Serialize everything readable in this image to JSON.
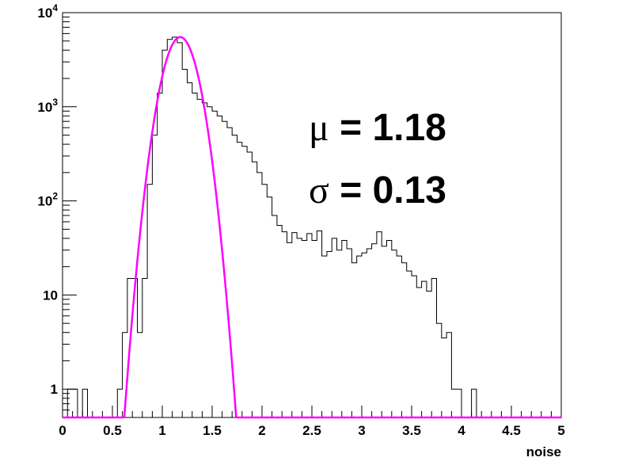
{
  "chart_data": {
    "type": "histogram",
    "xlabel": "noise",
    "ylabel": "",
    "xlim": [
      0,
      5
    ],
    "ylim": [
      0.5,
      10000
    ],
    "yscale": "log",
    "x_ticks": [
      "0",
      "0.5",
      "1",
      "1.5",
      "2",
      "2.5",
      "3",
      "3.5",
      "4",
      "4.5",
      "5"
    ],
    "y_ticks": [
      {
        "value": 1,
        "label": "1"
      },
      {
        "value": 10,
        "label": "10"
      },
      {
        "value": 100,
        "base": "10",
        "exp": "2"
      },
      {
        "value": 1000,
        "base": "10",
        "exp": "3"
      },
      {
        "value": 10000,
        "base": "10",
        "exp": "4"
      }
    ],
    "histogram": {
      "bin_width": 0.05,
      "x_start": 0,
      "counts": [
        0,
        1,
        1,
        0,
        1,
        0,
        0,
        0,
        0,
        0,
        0,
        1,
        4,
        15,
        15,
        4,
        15,
        150,
        500,
        1400,
        4000,
        5200,
        5500,
        4800,
        2500,
        1800,
        1400,
        1200,
        1100,
        1000,
        900,
        800,
        700,
        600,
        500,
        420,
        380,
        330,
        260,
        200,
        150,
        110,
        70,
        55,
        47,
        36,
        46,
        40,
        38,
        45,
        38,
        48,
        26,
        29,
        40,
        30,
        38,
        31,
        22,
        26,
        28,
        31,
        35,
        47,
        33,
        38,
        30,
        26,
        22,
        18,
        16,
        12,
        14,
        11,
        15,
        5,
        3.5,
        4,
        1,
        1,
        0,
        0,
        1,
        0.5,
        0,
        0,
        0,
        0,
        0,
        0,
        0,
        0,
        0,
        0,
        0,
        0,
        0,
        0,
        0,
        0
      ]
    },
    "fit": {
      "type": "gaussian",
      "mean": 1.18,
      "sigma": 0.13,
      "amplitude": 5500,
      "color": "#ff00ff"
    },
    "annotations": [
      {
        "symbol": "μ",
        "text": " = 1.18"
      },
      {
        "symbol": "σ",
        "text": " = 0.13"
      }
    ],
    "grid": false,
    "colors": {
      "histogram": "#000000",
      "fit": "#ff00ff",
      "frame": "#000000"
    }
  }
}
